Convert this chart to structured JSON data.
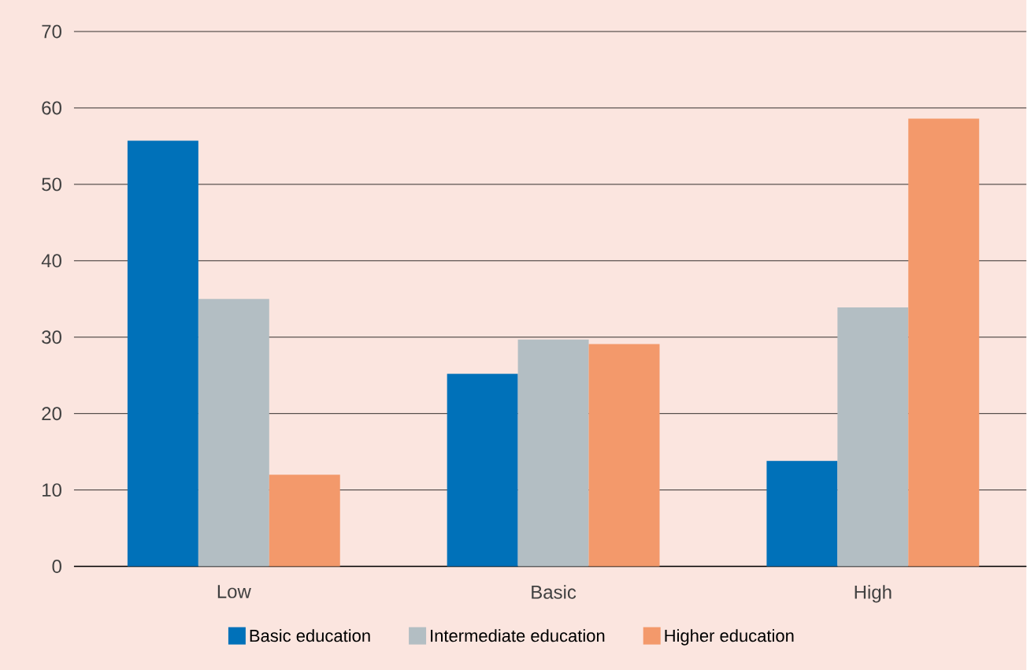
{
  "chart_data": {
    "type": "bar",
    "categories": [
      "Low",
      "Basic",
      "High"
    ],
    "series": [
      {
        "name": "Basic education",
        "color": "#0071b9",
        "values": [
          55.7,
          25.2,
          13.8
        ]
      },
      {
        "name": "Intermediate education",
        "color": "#b3bec3",
        "values": [
          35.0,
          29.7,
          33.9
        ]
      },
      {
        "name": "Higher education",
        "color": "#f3996b",
        "values": [
          12.0,
          29.1,
          58.6
        ]
      }
    ],
    "ylim": [
      0,
      70
    ],
    "yticks": [
      0,
      10,
      20,
      30,
      40,
      50,
      60,
      70
    ],
    "grid": "y",
    "legend": "bottom"
  }
}
